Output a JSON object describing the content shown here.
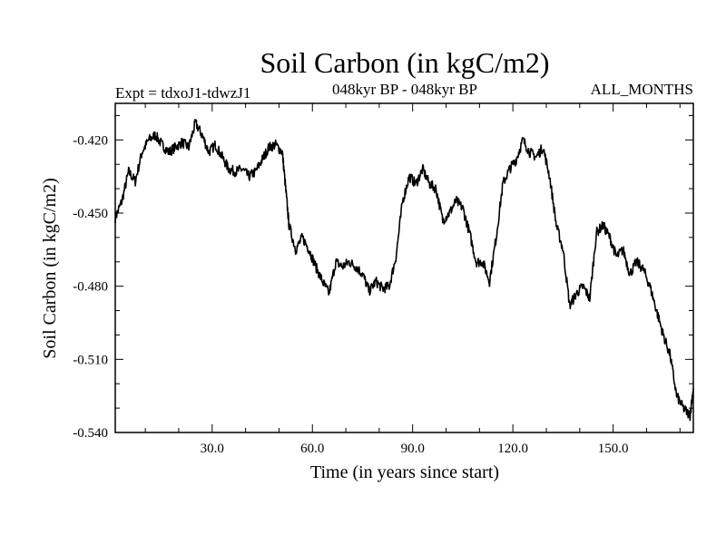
{
  "chart_data": {
    "type": "line",
    "title": "Soil Carbon (in kgC/m2)",
    "subtitle_left": "Expt = tdxoJ1-tdwzJ1",
    "subtitle_center": "048kyr BP - 048kyr BP",
    "subtitle_right": "ALL_MONTHS",
    "xlabel": "Time (in years since start)",
    "ylabel": "Soil Carbon (in kgC/m2)",
    "xlim": [
      1,
      174
    ],
    "ylim": [
      -0.54,
      -0.405
    ],
    "xticks": [
      30,
      60,
      90,
      120,
      150
    ],
    "xtick_labels": [
      "30.0",
      "60.0",
      "90.0",
      "120.0",
      "150.0"
    ],
    "yticks": [
      -0.42,
      -0.45,
      -0.48,
      -0.51,
      -0.54
    ],
    "ytick_labels": [
      "-0.420",
      "-0.450",
      "-0.480",
      "-0.510",
      "-0.540"
    ],
    "grid": false,
    "series": [
      {
        "name": "Soil Carbon",
        "x": [
          1,
          3,
          5,
          7,
          9,
          11,
          13,
          15,
          17,
          19,
          21,
          23,
          25,
          27,
          29,
          31,
          33,
          35,
          37,
          39,
          41,
          43,
          45,
          47,
          49,
          51,
          52,
          53,
          55,
          57,
          59,
          61,
          63,
          65,
          67,
          69,
          71,
          73,
          75,
          77,
          79,
          81,
          83,
          85,
          87,
          89,
          91,
          93,
          95,
          97,
          99,
          101,
          103,
          105,
          107,
          109,
          111,
          113,
          115,
          117,
          119,
          121,
          123,
          125,
          127,
          129,
          131,
          133,
          135,
          137,
          139,
          141,
          143,
          145,
          147,
          149,
          151,
          153,
          155,
          157,
          159,
          161,
          163,
          165,
          167,
          169,
          171,
          173,
          174
        ],
        "values": [
          -0.452,
          -0.445,
          -0.433,
          -0.437,
          -0.425,
          -0.42,
          -0.418,
          -0.422,
          -0.425,
          -0.423,
          -0.421,
          -0.423,
          -0.413,
          -0.418,
          -0.425,
          -0.422,
          -0.427,
          -0.432,
          -0.433,
          -0.432,
          -0.435,
          -0.433,
          -0.428,
          -0.423,
          -0.422,
          -0.425,
          -0.44,
          -0.455,
          -0.465,
          -0.46,
          -0.465,
          -0.472,
          -0.478,
          -0.483,
          -0.47,
          -0.472,
          -0.47,
          -0.472,
          -0.475,
          -0.482,
          -0.478,
          -0.481,
          -0.48,
          -0.468,
          -0.445,
          -0.435,
          -0.438,
          -0.432,
          -0.438,
          -0.44,
          -0.453,
          -0.45,
          -0.445,
          -0.448,
          -0.458,
          -0.47,
          -0.47,
          -0.478,
          -0.46,
          -0.438,
          -0.432,
          -0.428,
          -0.42,
          -0.425,
          -0.427,
          -0.423,
          -0.435,
          -0.455,
          -0.465,
          -0.488,
          -0.483,
          -0.48,
          -0.485,
          -0.458,
          -0.455,
          -0.46,
          -0.468,
          -0.465,
          -0.475,
          -0.47,
          -0.473,
          -0.48,
          -0.49,
          -0.5,
          -0.508,
          -0.525,
          -0.53,
          -0.533,
          -0.522
        ]
      }
    ]
  }
}
